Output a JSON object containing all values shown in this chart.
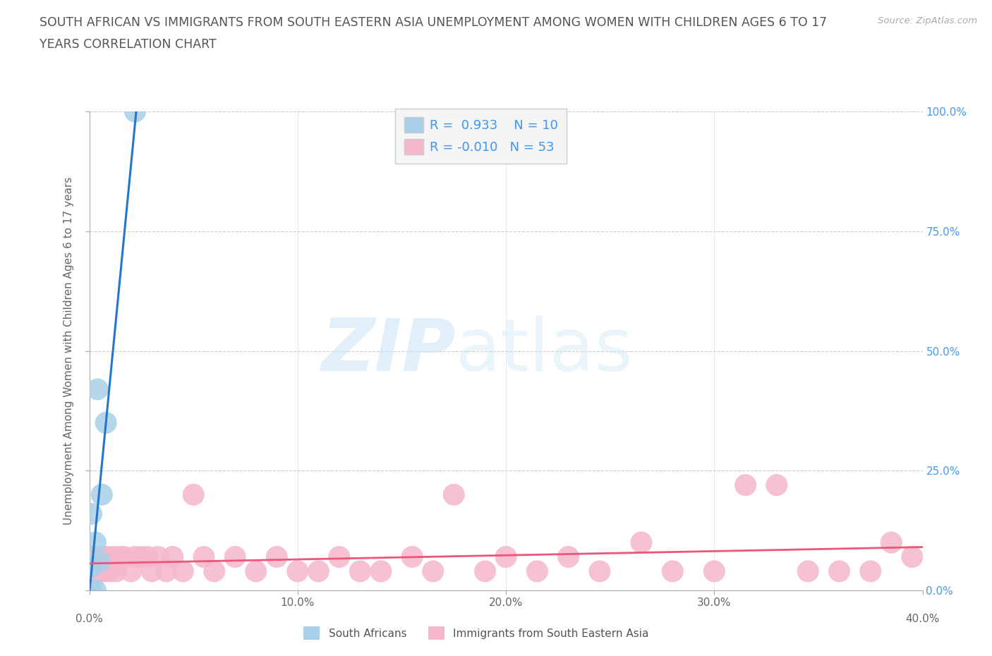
{
  "title_line1": "SOUTH AFRICAN VS IMMIGRANTS FROM SOUTH EASTERN ASIA UNEMPLOYMENT AMONG WOMEN WITH CHILDREN AGES 6 TO 17",
  "title_line2": "YEARS CORRELATION CHART",
  "source": "Source: ZipAtlas.com",
  "ylabel": "Unemployment Among Women with Children Ages 6 to 17 years",
  "background_color": "#ffffff",
  "watermark_zip": "ZIP",
  "watermark_atlas": "atlas",
  "r1": 0.933,
  "n1": 10,
  "r2": -0.01,
  "n2": 53,
  "xlim": [
    0.0,
    0.4
  ],
  "ylim": [
    0.0,
    1.0
  ],
  "xticks": [
    0.0,
    0.1,
    0.2,
    0.3,
    0.4
  ],
  "xtick_labels": [
    "",
    "10.0%",
    "20.0%",
    "30.0%",
    ""
  ],
  "ytick_labels": [
    "0.0%",
    "25.0%",
    "50.0%",
    "75.0%",
    "100.0%"
  ],
  "yticks": [
    0.0,
    0.25,
    0.5,
    0.75,
    1.0
  ],
  "grid_color": "#cccccc",
  "blue_color": "#a8cfe8",
  "pink_color": "#f5b8cb",
  "blue_line_color": "#2277cc",
  "pink_line_color": "#ee5577",
  "tick_label_color": "#4499ee",
  "south_african_x": [
    0.001,
    0.001,
    0.001,
    0.003,
    0.003,
    0.004,
    0.005,
    0.006,
    0.008,
    0.022
  ],
  "south_african_y": [
    0.0,
    0.05,
    0.16,
    0.0,
    0.1,
    0.42,
    0.06,
    0.2,
    0.35,
    1.0
  ],
  "immigrants_x": [
    0.001,
    0.001,
    0.002,
    0.003,
    0.004,
    0.005,
    0.006,
    0.007,
    0.008,
    0.009,
    0.01,
    0.012,
    0.013,
    0.015,
    0.017,
    0.02,
    0.022,
    0.025,
    0.028,
    0.03,
    0.033,
    0.037,
    0.04,
    0.045,
    0.05,
    0.055,
    0.06,
    0.07,
    0.08,
    0.09,
    0.1,
    0.11,
    0.12,
    0.13,
    0.14,
    0.155,
    0.165,
    0.175,
    0.19,
    0.2,
    0.215,
    0.23,
    0.245,
    0.265,
    0.28,
    0.3,
    0.315,
    0.33,
    0.345,
    0.36,
    0.375,
    0.385,
    0.395
  ],
  "immigrants_y": [
    0.04,
    0.07,
    0.04,
    0.07,
    0.04,
    0.04,
    0.04,
    0.07,
    0.04,
    0.07,
    0.04,
    0.07,
    0.04,
    0.07,
    0.07,
    0.04,
    0.07,
    0.07,
    0.07,
    0.04,
    0.07,
    0.04,
    0.07,
    0.04,
    0.2,
    0.07,
    0.04,
    0.07,
    0.04,
    0.07,
    0.04,
    0.04,
    0.07,
    0.04,
    0.04,
    0.07,
    0.04,
    0.2,
    0.04,
    0.07,
    0.04,
    0.07,
    0.04,
    0.1,
    0.04,
    0.04,
    0.22,
    0.22,
    0.04,
    0.04,
    0.04,
    0.1,
    0.07
  ]
}
